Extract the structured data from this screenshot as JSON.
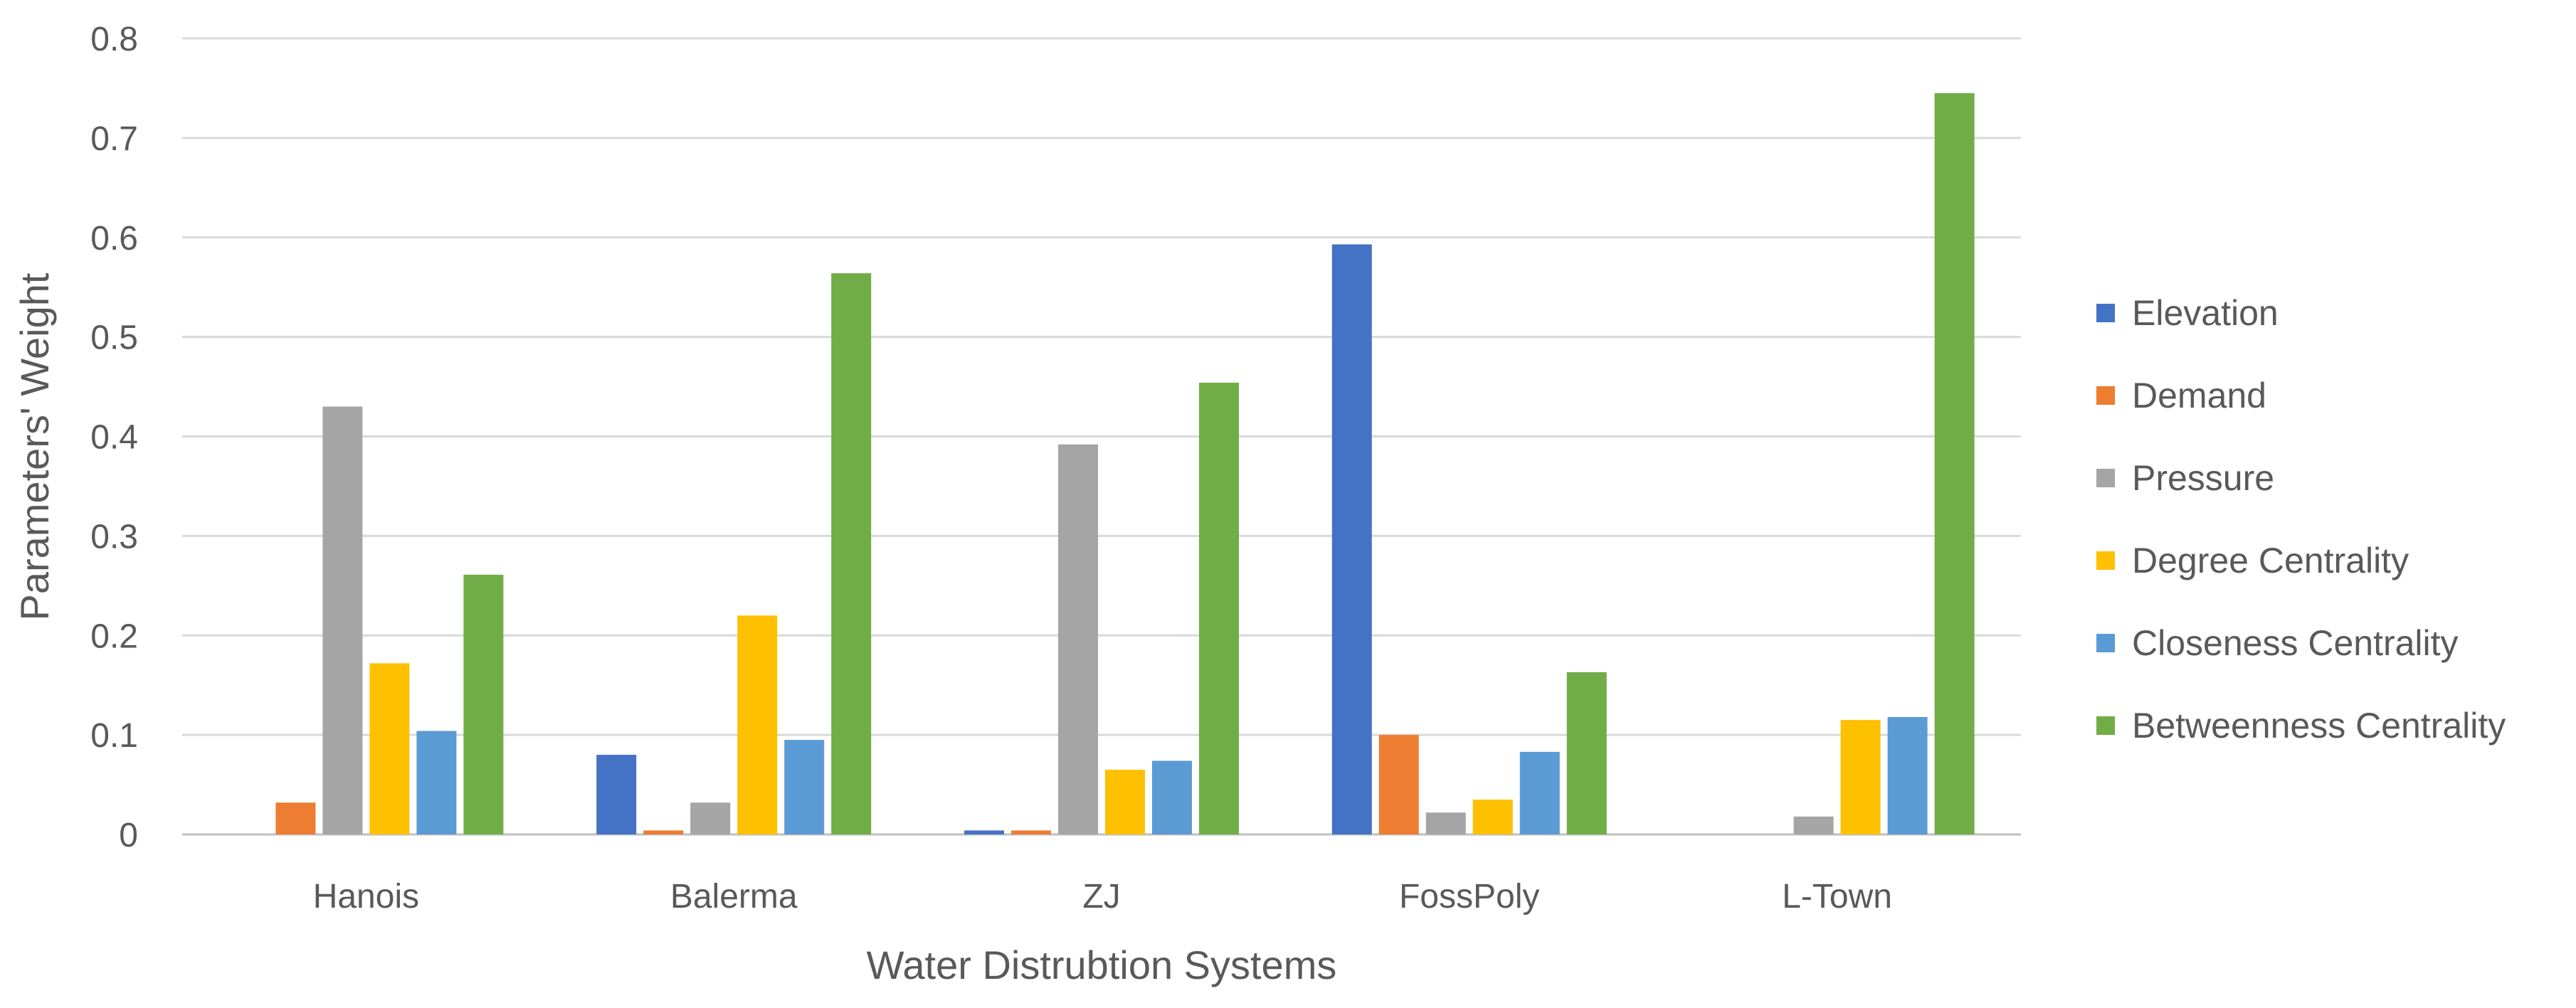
{
  "chart_data": {
    "type": "bar",
    "title": "",
    "xlabel": "Water Distrubtion Systems",
    "ylabel": "Parameters' Weight",
    "ylim": [
      0,
      0.8
    ],
    "yticks": [
      0,
      0.1,
      0.2,
      0.3,
      0.4,
      0.5,
      0.6,
      0.7,
      0.8
    ],
    "ytick_labels": [
      "0",
      "0.1",
      "0.2",
      "0.3",
      "0.4",
      "0.5",
      "0.6",
      "0.7",
      "0.8"
    ],
    "grid": true,
    "legend_position": "right",
    "categories": [
      "Hanois",
      "Balerma",
      "ZJ",
      "FossPoly",
      "L-Town"
    ],
    "series": [
      {
        "name": "Elevation",
        "color": "#4472C4",
        "values": [
          0,
          0.08,
          0.004,
          0.593,
          0
        ]
      },
      {
        "name": "Demand",
        "color": "#ED7D31",
        "values": [
          0.032,
          0.004,
          0.004,
          0.1,
          0
        ]
      },
      {
        "name": "Pressure",
        "color": "#A5A5A5",
        "values": [
          0.43,
          0.032,
          0.392,
          0.022,
          0.018
        ]
      },
      {
        "name": "Degree Centrality",
        "color": "#FFC000",
        "values": [
          0.172,
          0.22,
          0.065,
          0.035,
          0.115
        ]
      },
      {
        "name": "Closeness Centrality",
        "color": "#5B9BD5",
        "values": [
          0.104,
          0.095,
          0.074,
          0.083,
          0.118
        ]
      },
      {
        "name": "Betweenness Centrality",
        "color": "#70AD47",
        "values": [
          0.261,
          0.564,
          0.454,
          0.163,
          0.745
        ]
      }
    ]
  }
}
